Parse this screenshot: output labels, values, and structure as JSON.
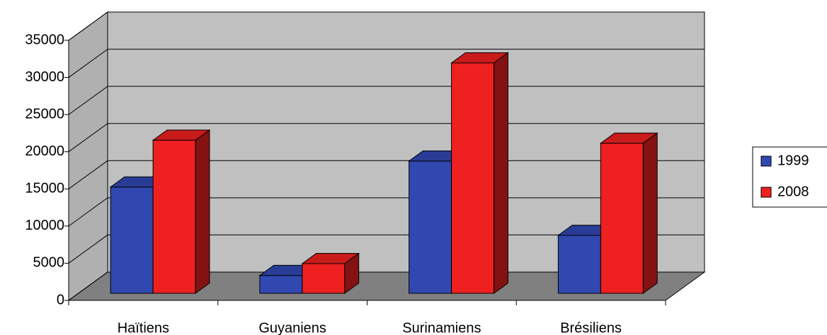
{
  "chart_data": {
    "type": "bar3d",
    "categories": [
      "Haïtiens",
      "Guyaniens",
      "Surinamiens",
      "Brésiliens"
    ],
    "series": [
      {
        "name": "1999",
        "color": "#3048b0",
        "values": [
          14300,
          2400,
          17800,
          7800
        ]
      },
      {
        "name": "2008",
        "color": "#ee2020",
        "values": [
          20600,
          4000,
          31000,
          20200
        ]
      }
    ],
    "ylim": [
      0,
      35000
    ],
    "yticks": [
      0,
      5000,
      10000,
      15000,
      20000,
      25000,
      30000,
      35000
    ],
    "grid": true,
    "legend": "right"
  }
}
